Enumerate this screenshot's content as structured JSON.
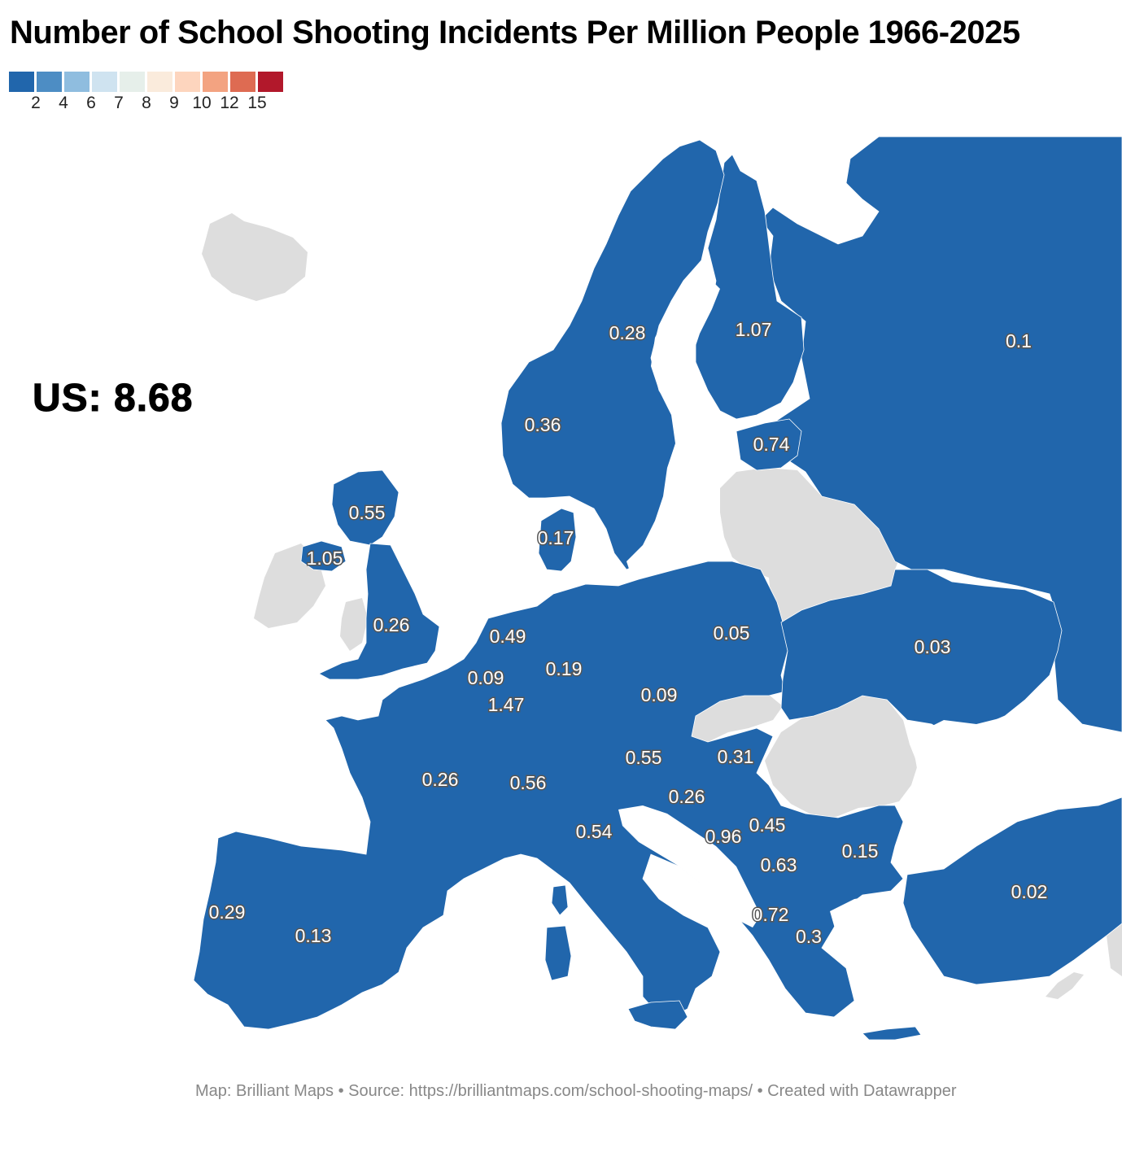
{
  "title": "Number of School Shooting Incidents Per Million People 1966-2025",
  "legend": {
    "colors": [
      "#2166ac",
      "#4d8dc4",
      "#8fbddf",
      "#cfe3f0",
      "#e6efea",
      "#faebdc",
      "#fdd5be",
      "#f3a381",
      "#de6b52",
      "#b2182b"
    ],
    "ticks": [
      "2",
      "4",
      "6",
      "7",
      "8",
      "9",
      "10",
      "12",
      "15"
    ]
  },
  "us_note": "US: 8.68",
  "colors": {
    "data_fill": "#2166ac",
    "no_data_fill": "#dddddd",
    "border": "#ffffff",
    "water": "#ffffff"
  },
  "countries": [
    {
      "name": "Russia",
      "label": "0.1"
    },
    {
      "name": "Finland",
      "label": "1.07"
    },
    {
      "name": "Sweden",
      "label": "0.28"
    },
    {
      "name": "Norway",
      "label": "0.36"
    },
    {
      "name": "Estonia",
      "label": "0.74"
    },
    {
      "name": "United Kingdom (Scotland)",
      "label": "0.55"
    },
    {
      "name": "Northern Ireland",
      "label": "1.05"
    },
    {
      "name": "Denmark",
      "label": "0.17"
    },
    {
      "name": "England",
      "label": "0.26"
    },
    {
      "name": "Netherlands",
      "label": "0.49"
    },
    {
      "name": "Germany",
      "label": "0.19"
    },
    {
      "name": "Poland",
      "label": "0.05"
    },
    {
      "name": "Ukraine",
      "label": "0.03"
    },
    {
      "name": "Belgium",
      "label": "0.09"
    },
    {
      "name": "Luxembourg",
      "label": "1.47"
    },
    {
      "name": "Czechia",
      "label": "0.09"
    },
    {
      "name": "France",
      "label": "0.26"
    },
    {
      "name": "Switzerland",
      "label": "0.56"
    },
    {
      "name": "Austria",
      "label": "0.55"
    },
    {
      "name": "Hungary",
      "label": "0.31"
    },
    {
      "name": "Croatia",
      "label": "0.26"
    },
    {
      "name": "Italy",
      "label": "0.54"
    },
    {
      "name": "Bosnia and Herzegovina",
      "label": "0.96"
    },
    {
      "name": "Serbia",
      "label": "0.45"
    },
    {
      "name": "Bulgaria",
      "label": "0.15"
    },
    {
      "name": "Kosovo",
      "label": "0.63"
    },
    {
      "name": "Albania",
      "label": "0.72"
    },
    {
      "name": "Greece",
      "label": "0.3"
    },
    {
      "name": "Turkey",
      "label": "0.02"
    },
    {
      "name": "Portugal",
      "label": "0.29"
    },
    {
      "name": "Spain",
      "label": "0.13"
    }
  ],
  "footer": "Map: Brilliant Maps • Source: https://brilliantmaps.com/school-shooting-maps/ • Created with Datawrapper"
}
